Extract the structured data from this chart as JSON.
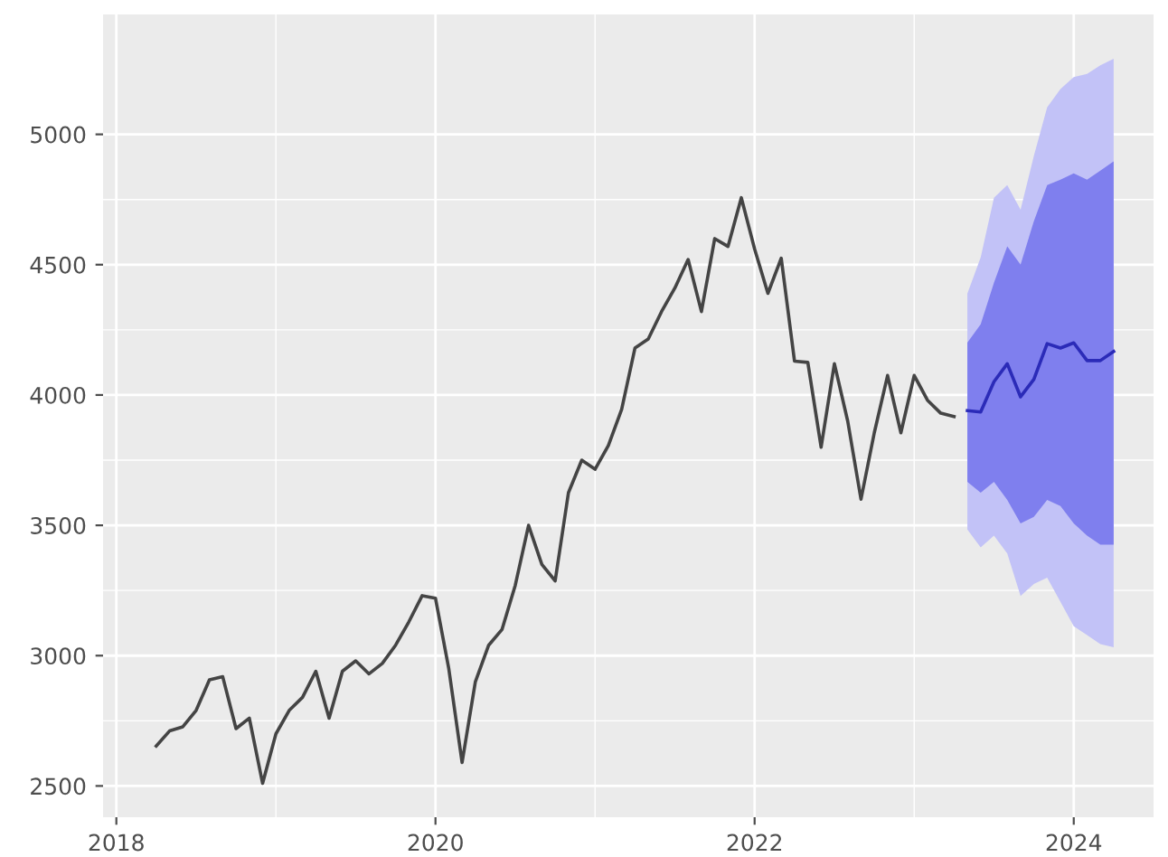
{
  "chart_data": {
    "type": "line",
    "xlim": [
      "2017-12",
      "2024-07"
    ],
    "xticks": [
      "2018",
      "2020",
      "2022",
      "2024"
    ],
    "ylim": [
      2380,
      5460
    ],
    "yticks": [
      2500,
      3000,
      3500,
      4000,
      4500,
      5000
    ],
    "grid": true,
    "marker": "none",
    "line_style": "solid",
    "series": [
      {
        "color": "#444444",
        "x": [
          "2018-04",
          "2018-05",
          "2018-06",
          "2018-07",
          "2018-08",
          "2018-09",
          "2018-10",
          "2018-11",
          "2018-12",
          "2019-01",
          "2019-02",
          "2019-03",
          "2019-04",
          "2019-05",
          "2019-06",
          "2019-07",
          "2019-08",
          "2019-09",
          "2019-10",
          "2019-11",
          "2019-12",
          "2020-01",
          "2020-02",
          "2020-03",
          "2020-04",
          "2020-05",
          "2020-06",
          "2020-07",
          "2020-08",
          "2020-09",
          "2020-10",
          "2020-11",
          "2020-12",
          "2021-01",
          "2021-02",
          "2021-03",
          "2021-04",
          "2021-05",
          "2021-06",
          "2021-07",
          "2021-08",
          "2021-09",
          "2021-10",
          "2021-11",
          "2021-12",
          "2022-01",
          "2022-02",
          "2022-03",
          "2022-04",
          "2022-05",
          "2022-06",
          "2022-07",
          "2022-08",
          "2022-09",
          "2022-10",
          "2022-11",
          "2022-12",
          "2023-01",
          "2023-02",
          "2023-03",
          "2023-04"
        ],
        "values": [
          2653,
          2711,
          2727,
          2790,
          2907,
          2919,
          2720,
          2760,
          2510,
          2700,
          2790,
          2840,
          2940,
          2760,
          2940,
          2980,
          2930,
          2970,
          3040,
          3130,
          3230,
          3220,
          2950,
          2590,
          2900,
          3040,
          3100,
          3270,
          3500,
          3350,
          3287,
          3625,
          3750,
          3715,
          3806,
          3945,
          4180,
          4215,
          4320,
          4410,
          4520,
          4320,
          4600,
          4570,
          4757,
          4560,
          4390,
          4525,
          4130,
          4125,
          3800,
          4120,
          3900,
          3600,
          3855,
          4075,
          3855,
          4075,
          3980,
          3930,
          3917
        ]
      },
      {
        "type": "line",
        "color": "#c2c2f7",
        "x": [
          "2023-05",
          "2023-06",
          "2023-07",
          "2023-08",
          "2023-09",
          "2023-10",
          "2023-11",
          "2023-12",
          "2024-01",
          "2024-02",
          "2024-03",
          "2024-04"
        ],
        "values": [
          null,
          null,
          null,
          null,
          null,
          null,
          null,
          null,
          null,
          null,
          null,
          null
        ],
        "lower": [
          3484,
          3415,
          3460,
          3392,
          3229,
          3275,
          3299,
          3206,
          3113,
          3079,
          3044,
          3032
        ],
        "upper": [
          4389,
          4528,
          4757,
          4805,
          4711,
          4917,
          5104,
          5174,
          5220,
          5232,
          5265,
          5290
        ]
      },
      {
        "type": "line",
        "color": "#7f7fee",
        "x": [
          "2023-05",
          "2023-06",
          "2023-07",
          "2023-08",
          "2023-09",
          "2023-10",
          "2023-11",
          "2023-12",
          "2024-01",
          "2024-02",
          "2024-03",
          "2024-04"
        ],
        "values": [
          null,
          null,
          null,
          null,
          null,
          null,
          null,
          null,
          null,
          null,
          null,
          null
        ],
        "lower": [
          3667,
          3625,
          3667,
          3597,
          3507,
          3532,
          3597,
          3574,
          3507,
          3460,
          3426,
          3426
        ],
        "upper": [
          4201,
          4271,
          4431,
          4570,
          4500,
          4667,
          4805,
          4826,
          4850,
          4826,
          4861,
          4896
        ]
      },
      {
        "type": "line",
        "color": "#2b2bb8",
        "x": [
          "2023-05",
          "2023-06",
          "2023-07",
          "2023-08",
          "2023-09",
          "2023-10",
          "2023-11",
          "2023-12",
          "2024-01",
          "2024-02",
          "2024-03",
          "2024-04"
        ],
        "values": [
          3940,
          3935,
          4051,
          4120,
          3993,
          4060,
          4197,
          4180,
          4200,
          4132,
          4132,
          4167
        ]
      }
    ]
  }
}
